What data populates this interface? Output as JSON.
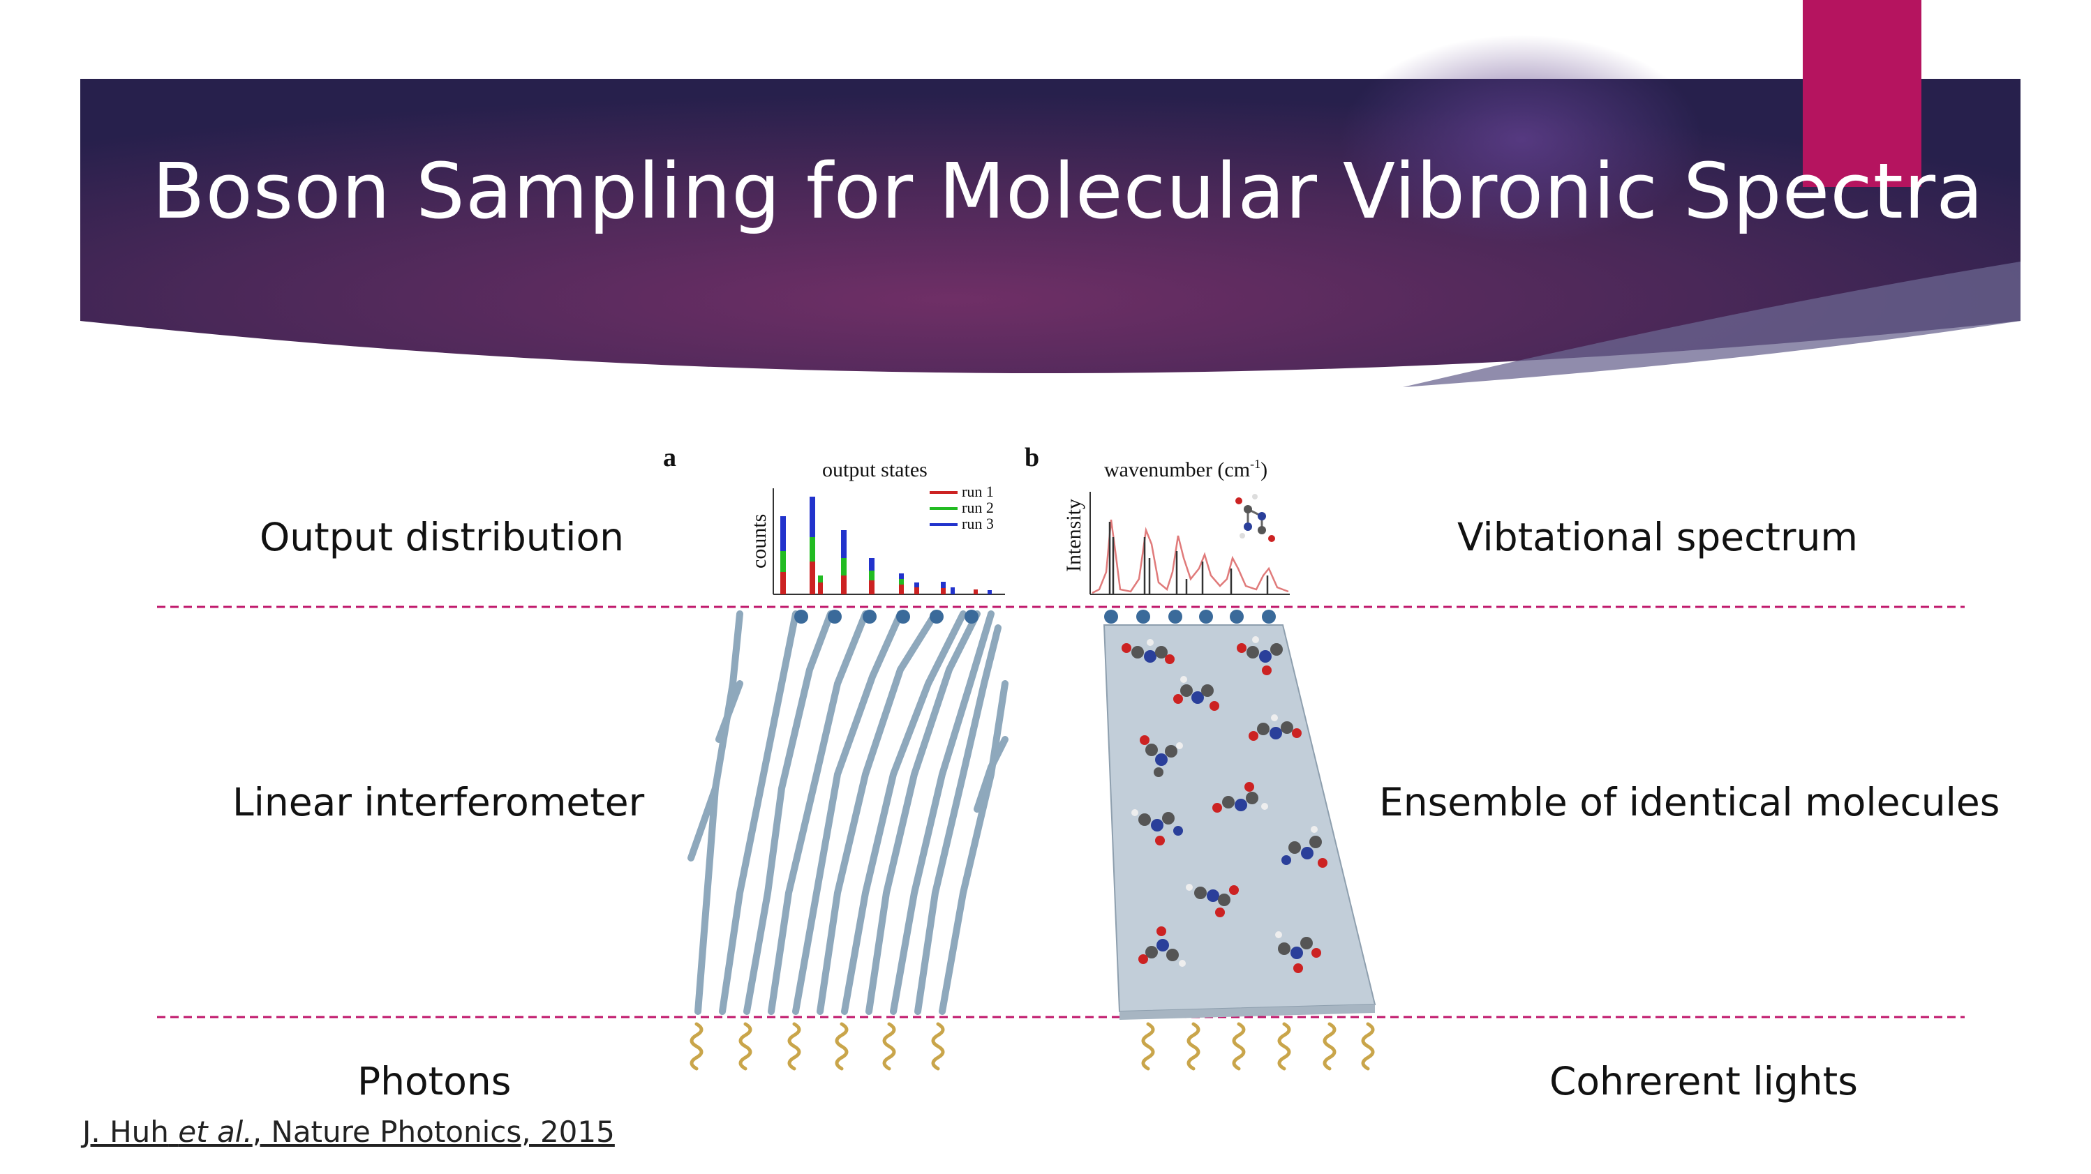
{
  "slide": {
    "title": "Boson Sampling for Molecular Vibronic Spectra",
    "accent_color": "#b5145f",
    "banner_colors": [
      "#2a2050",
      "#6a2d62"
    ],
    "divider_color": "#c0176b"
  },
  "labels_left": {
    "output": "Output distribution",
    "interferometer": "Linear interferometer",
    "photons": "Photons"
  },
  "labels_right": {
    "spectrum": "Vibtational spectrum",
    "ensemble": "Ensemble of identical molecules",
    "lights": "Cohrerent lights"
  },
  "citation": {
    "authors": "J. Huh",
    "etal": "et al.",
    "source": ", Nature Photonics, 2015"
  },
  "figure": {
    "panel_a": {
      "letter": "a",
      "title": "output states",
      "ylabel": "counts",
      "legend": [
        {
          "name": "run 1",
          "color": "#cc2222"
        },
        {
          "name": "run 2",
          "color": "#22bb22"
        },
        {
          "name": "run 3",
          "color": "#2233cc"
        }
      ]
    },
    "panel_b": {
      "letter": "b",
      "title": "wavenumber (cm",
      "title_sup": "-1",
      "title_end": ")",
      "ylabel": "Intensity"
    }
  }
}
